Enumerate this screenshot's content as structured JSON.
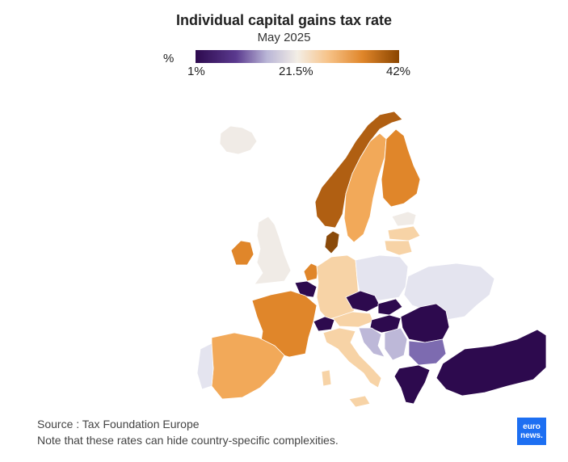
{
  "title": "Individual capital gains tax rate",
  "subtitle": "May 2025",
  "legend": {
    "unit": "%",
    "min_label": "1%",
    "mid_label": "21.5%",
    "max_label": "42%",
    "colors": [
      "#2d0a4e",
      "#5b3a8f",
      "#b9b5d6",
      "#f3eee6",
      "#f7c389",
      "#e0862a",
      "#8a4500"
    ]
  },
  "footer": {
    "source": "Source : Tax Foundation Europe",
    "note": "Note that these rates can hide country-specific complexities."
  },
  "logo": {
    "line1": "euro",
    "line2": "news."
  },
  "colors": {
    "very_low": "#2d0a4e",
    "low": "#7d6bb0",
    "low_mid": "#bdb8d8",
    "mid_light": "#e4e4ef",
    "neutral": "#f0ebe6",
    "light_orange": "#f7d3a6",
    "orange": "#f2a959",
    "dark_orange": "#e0862a",
    "brown": "#b05f12",
    "dark_brown": "#8a4a0a"
  }
}
